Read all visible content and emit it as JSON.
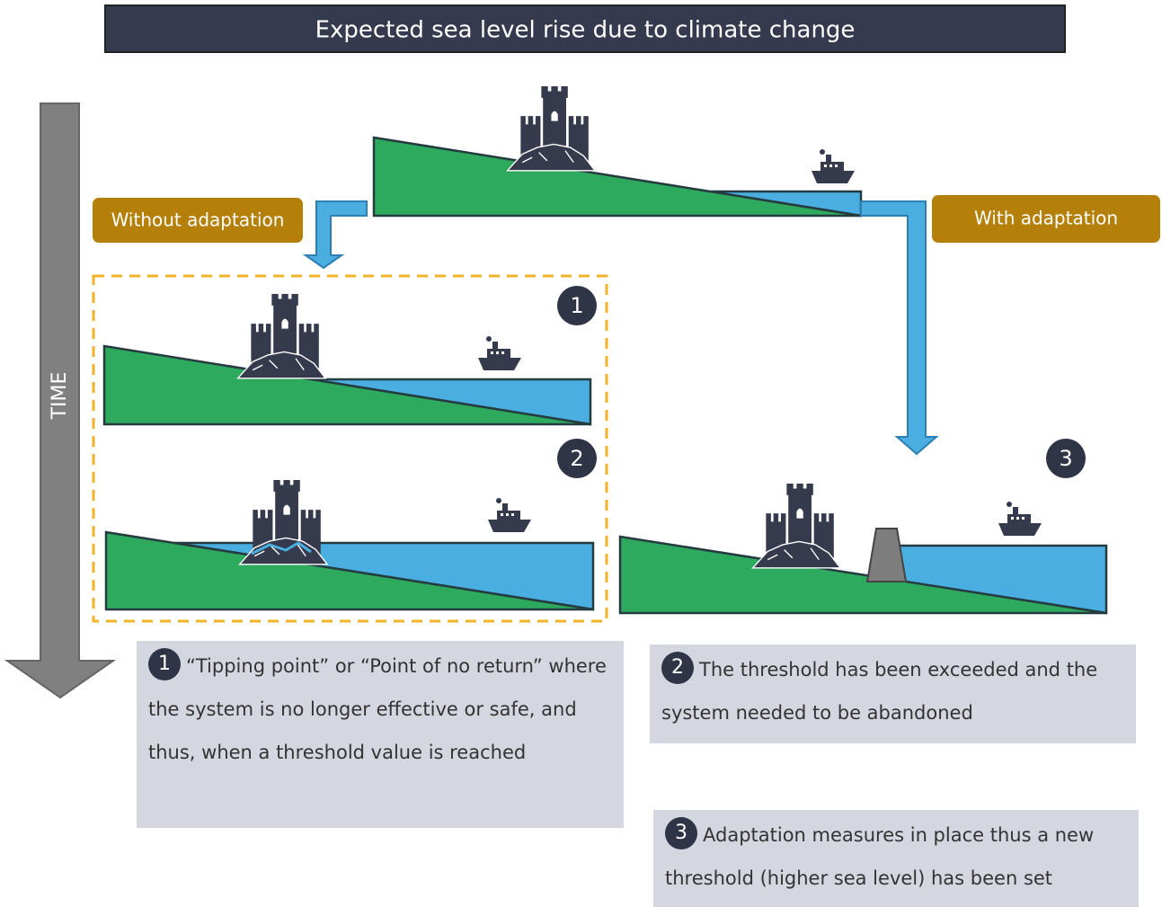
{
  "title": "Expected sea level rise due to climate change",
  "time_label": "TIME",
  "branches": {
    "without": "Without adaptation",
    "with": "With adaptation"
  },
  "markers": [
    "1",
    "2",
    "3"
  ],
  "notes": [
    {
      "number": "1",
      "text": "“Tipping point” or “Point of no return” where the system is no longer effective or safe, and thus, when a threshold value is reached"
    },
    {
      "number": "2",
      "text": "The threshold has been exceeded and the system needed to be abandoned"
    },
    {
      "number": "3",
      "text": "Adaptation measures in place thus a new threshold (higher sea level) has been set"
    }
  ]
}
